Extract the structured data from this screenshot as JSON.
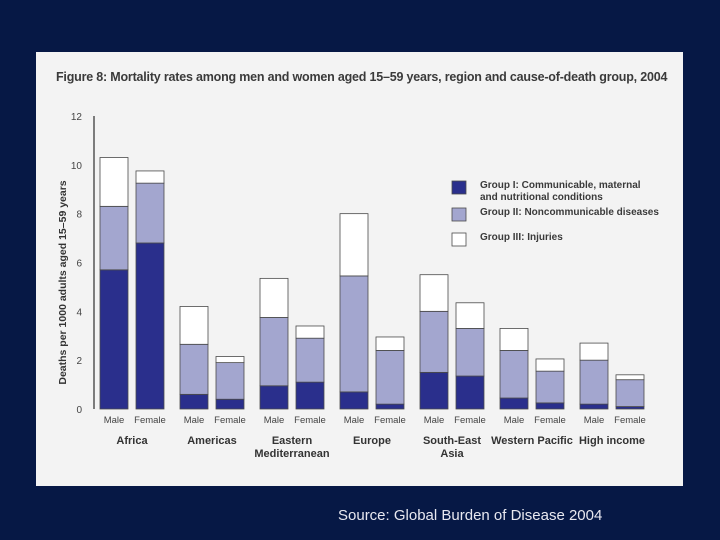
{
  "chart_data": {
    "type": "bar",
    "stacked": true,
    "title": "Figure 8: Mortality rates among men and women aged 15–59 years, region and cause-of-death group, 2004",
    "ylabel": "Deaths per 1000 adults aged 15–59 years",
    "ylim": [
      0,
      12
    ],
    "yticks": [
      "0",
      "2",
      "4",
      "6",
      "8",
      "10",
      "12"
    ],
    "groups": [
      {
        "label": [
          "Africa"
        ],
        "categories": [
          "Male",
          "Female"
        ]
      },
      {
        "label": [
          "Americas"
        ],
        "categories": [
          "Male",
          "Female"
        ]
      },
      {
        "label": [
          "Eastern",
          "Mediterranean"
        ],
        "categories": [
          "Male",
          "Female"
        ]
      },
      {
        "label": [
          "Europe"
        ],
        "categories": [
          "Male",
          "Female"
        ]
      },
      {
        "label": [
          "South-East",
          "Asia"
        ],
        "categories": [
          "Male",
          "Female"
        ]
      },
      {
        "label": [
          "Western Pacific"
        ],
        "categories": [
          "Male",
          "Female"
        ]
      },
      {
        "label": [
          "High income"
        ],
        "categories": [
          "Male",
          "Female"
        ]
      }
    ],
    "series": [
      {
        "name": "Group I: Communicable, maternal and nutritional conditions",
        "legend_lines": [
          "Group I: Communicable, maternal",
          "and nutritional conditions"
        ],
        "color": "#2a2f8c",
        "values": [
          5.7,
          6.8,
          0.6,
          0.4,
          0.95,
          1.1,
          0.7,
          0.2,
          1.5,
          1.35,
          0.45,
          0.25,
          0.2,
          0.1
        ]
      },
      {
        "name": "Group II: Noncommunicable diseases",
        "legend_lines": [
          "Group II: Noncommunicable diseases"
        ],
        "color": "#a3a6cf",
        "values": [
          2.6,
          2.45,
          2.05,
          1.5,
          2.8,
          1.8,
          4.75,
          2.2,
          2.5,
          1.95,
          1.95,
          1.3,
          1.8,
          1.1
        ]
      },
      {
        "name": "Group III: Injuries",
        "legend_lines": [
          "Group III: Injuries"
        ],
        "color": "#ffffff",
        "values": [
          2.0,
          0.5,
          1.55,
          0.25,
          1.6,
          0.5,
          2.55,
          0.55,
          1.5,
          1.05,
          0.9,
          0.5,
          0.7,
          0.2
        ]
      }
    ],
    "legend_position": "right"
  },
  "footer": {
    "source": "Source:  Global Burden of Disease 2004"
  }
}
